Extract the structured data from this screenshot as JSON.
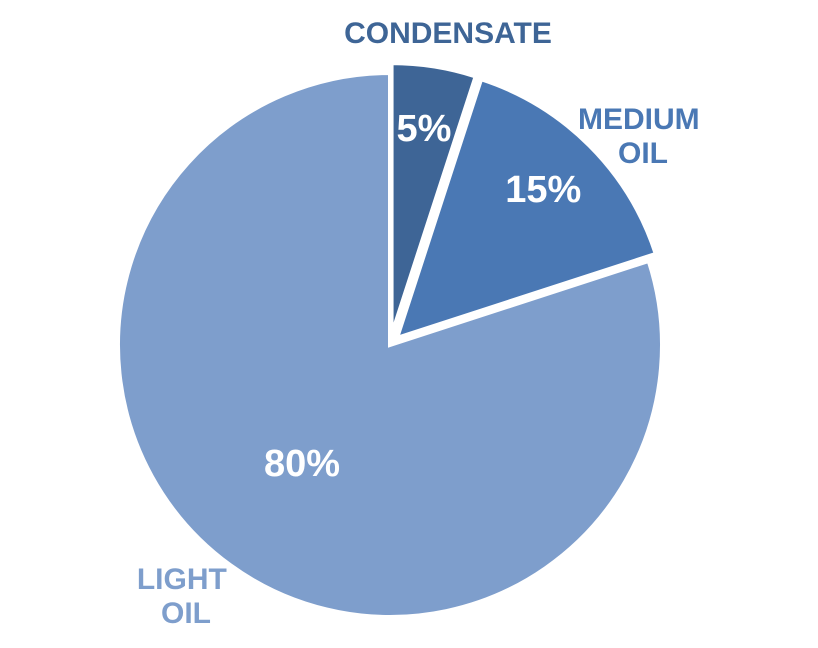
{
  "chart_data": {
    "type": "pie",
    "categories": [
      "CONDENSATE",
      "MEDIUM OIL",
      "LIGHT OIL"
    ],
    "values": [
      5,
      15,
      80
    ],
    "value_labels": [
      "5%",
      "15%",
      "80%"
    ],
    "colors": [
      "#3e6596",
      "#4a78b4",
      "#7e9ecc"
    ]
  }
}
